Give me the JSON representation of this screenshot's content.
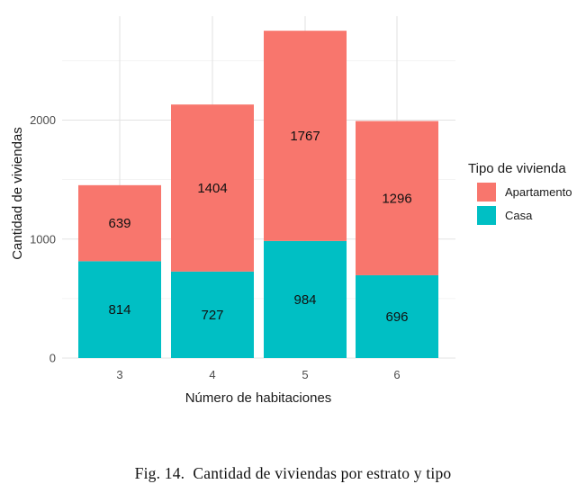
{
  "chart_data": {
    "type": "bar",
    "stacked": true,
    "categories": [
      "3",
      "4",
      "5",
      "6"
    ],
    "series": [
      {
        "name": "Casa",
        "color": "#00BFC4",
        "values": [
          814,
          727,
          984,
          696
        ]
      },
      {
        "name": "Apartamento",
        "color": "#F8766D",
        "values": [
          639,
          1404,
          1767,
          1296
        ]
      }
    ],
    "xlabel": "Número de habitaciones",
    "ylabel": "Cantidad de viviendas",
    "ylim": [
      0,
      2750
    ],
    "yticks": [
      0,
      1000,
      2000
    ],
    "ytick_labels": [
      "0",
      "1000",
      "2000"
    ],
    "grid": true,
    "legend": {
      "title": "Tipo de vivienda",
      "position": "right",
      "entries": [
        {
          "label": "Apartamento",
          "color": "#F8766D"
        },
        {
          "label": "Casa",
          "color": "#00BFC4"
        }
      ]
    }
  },
  "caption": "Fig. 14.  Cantidad de viviendas por estrato y tipo"
}
